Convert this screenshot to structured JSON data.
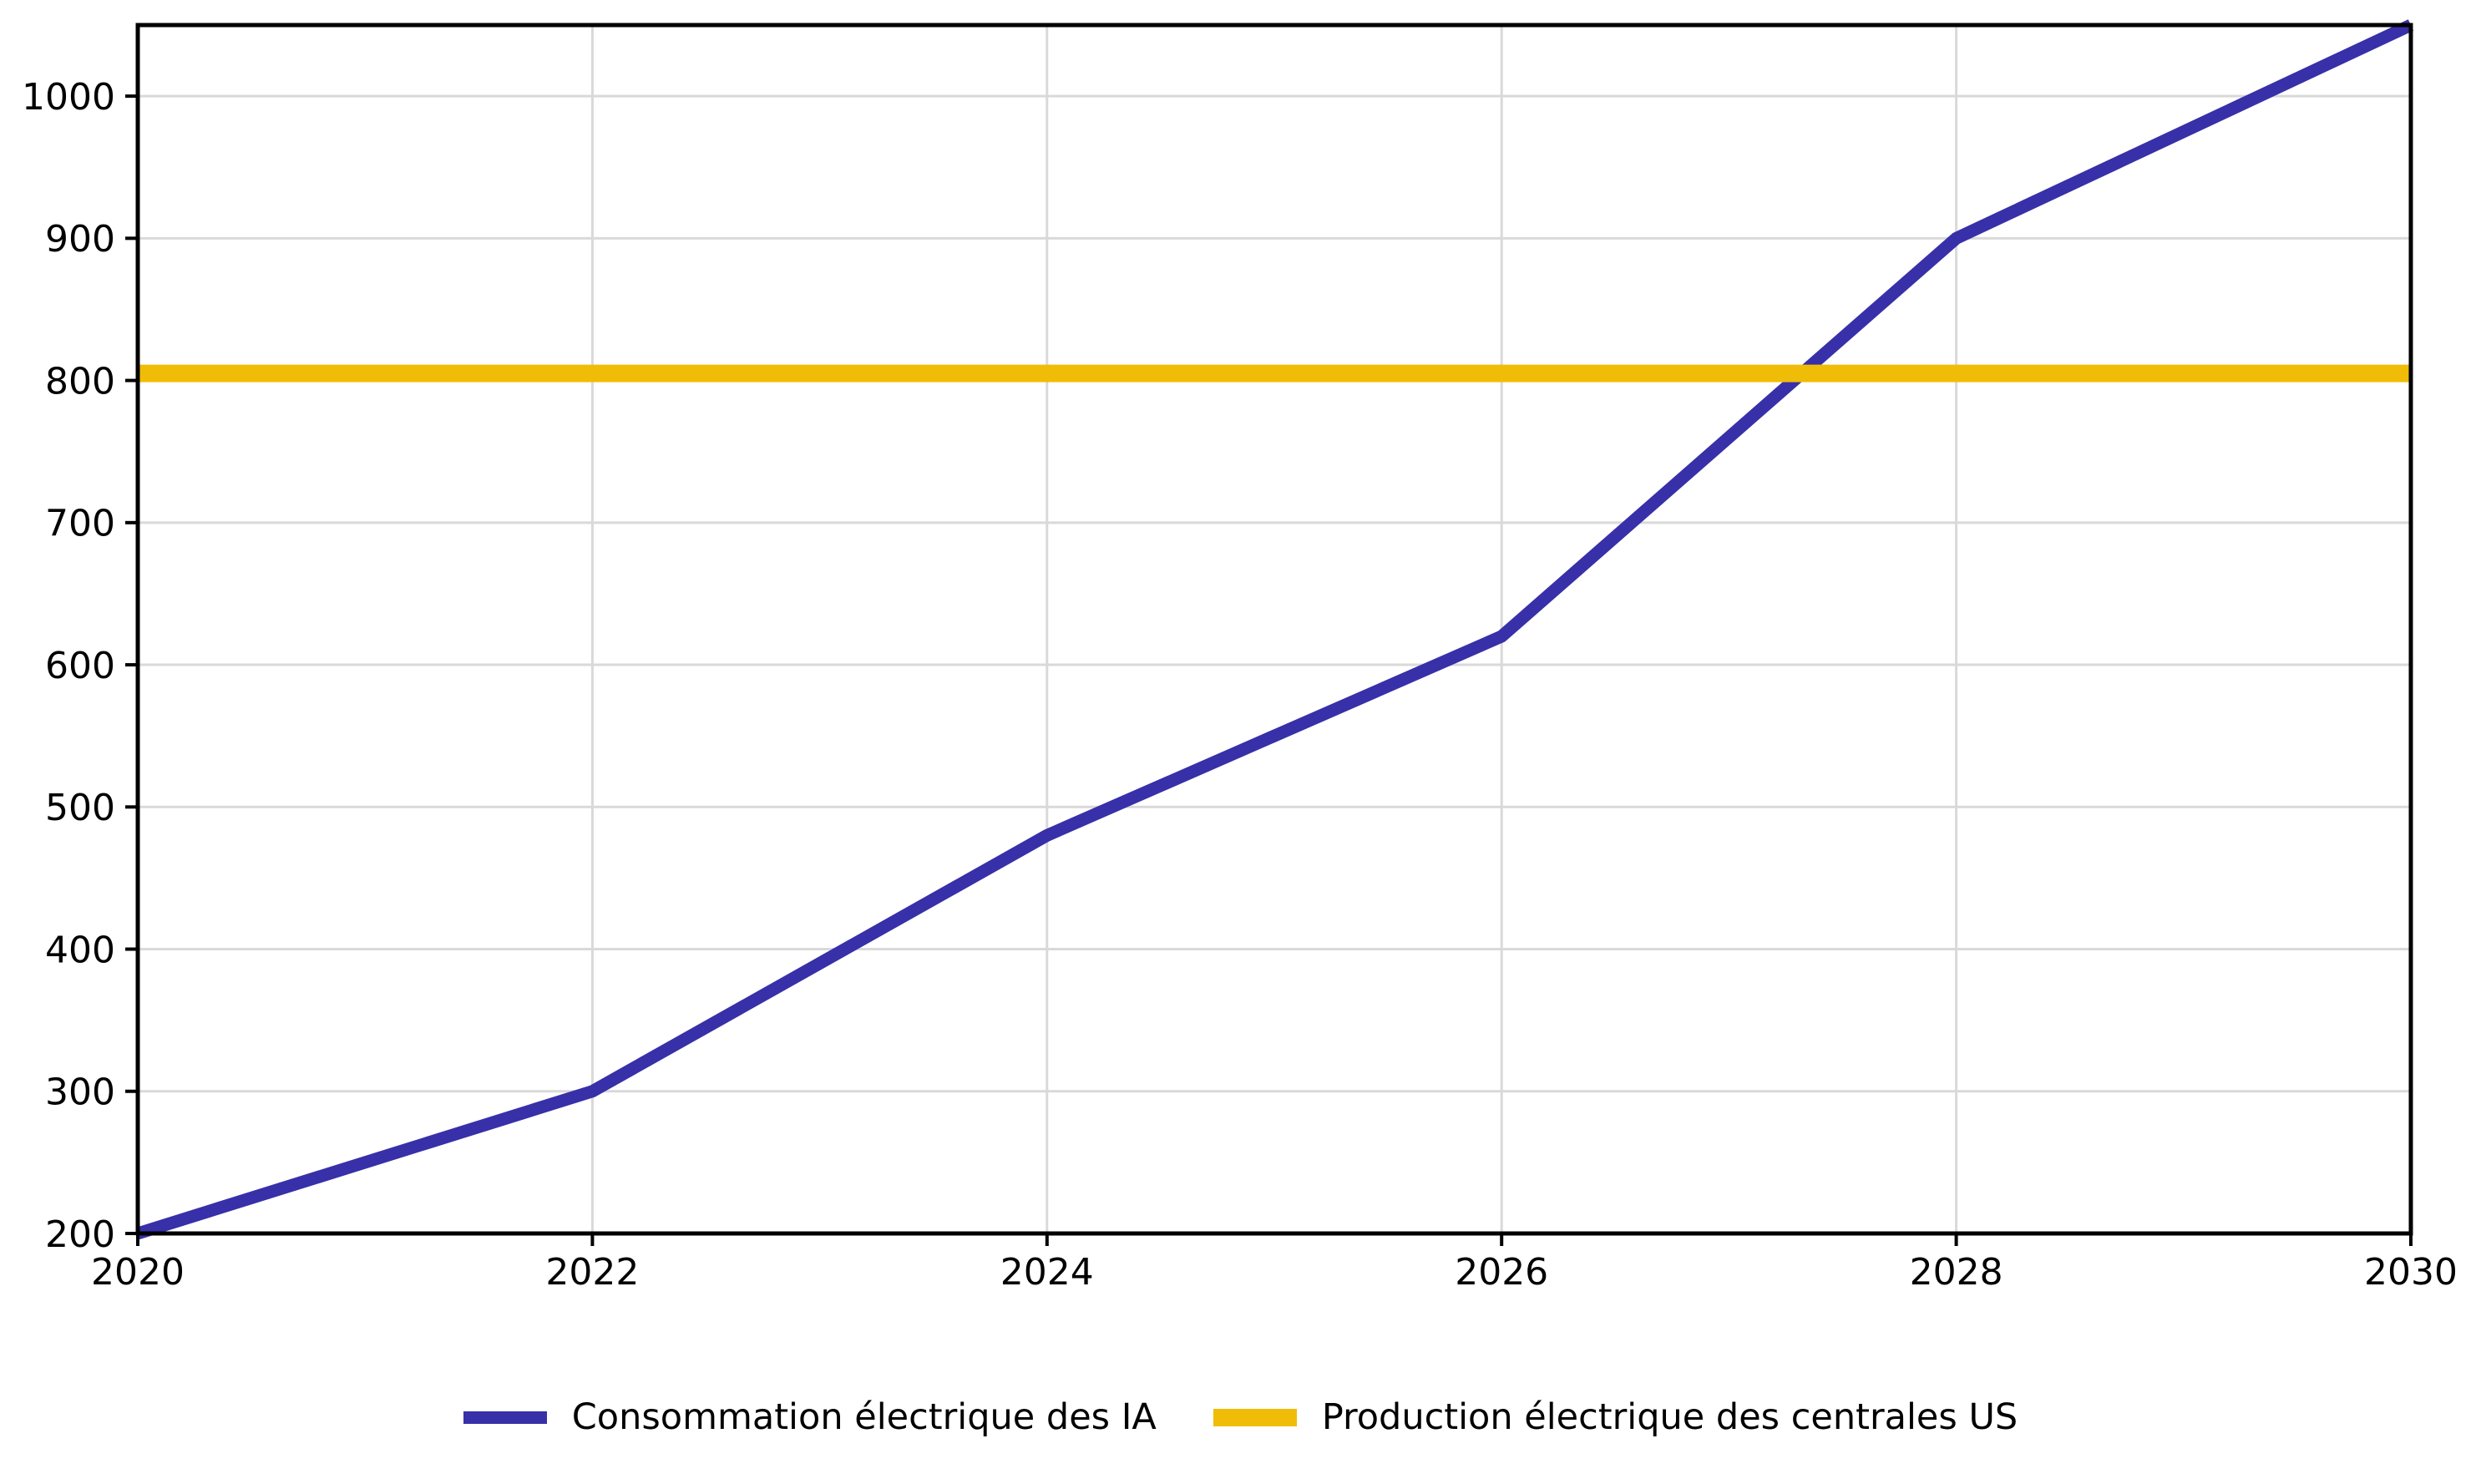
{
  "chart_data": {
    "type": "line",
    "title": "",
    "xlabel": "",
    "ylabel": "",
    "xlim": [
      2020,
      2030
    ],
    "ylim": [
      200,
      1050
    ],
    "grid": true,
    "legend_position": "bottom-center",
    "x_ticks": [
      {
        "value": 2020,
        "label": "2020"
      },
      {
        "value": 2022,
        "label": "2022"
      },
      {
        "value": 2024,
        "label": "2024"
      },
      {
        "value": 2026,
        "label": "2026"
      },
      {
        "value": 2028,
        "label": "2028"
      },
      {
        "value": 2030,
        "label": "2030"
      }
    ],
    "y_ticks": [
      {
        "value": 200,
        "label": "200"
      },
      {
        "value": 300,
        "label": "300"
      },
      {
        "value": 400,
        "label": "400"
      },
      {
        "value": 500,
        "label": "500"
      },
      {
        "value": 600,
        "label": "600"
      },
      {
        "value": 700,
        "label": "700"
      },
      {
        "value": 800,
        "label": "800"
      },
      {
        "value": 900,
        "label": "900"
      },
      {
        "value": 1000,
        "label": "1000"
      }
    ],
    "series": [
      {
        "name": "Consommation électrique des IA",
        "color": "#3730A8",
        "stroke_width": 15,
        "x": [
          2020,
          2022,
          2024,
          2026,
          2028,
          2030
        ],
        "values": [
          200,
          300,
          480,
          620,
          900,
          1050
        ]
      },
      {
        "name": "Production électrique des centrales US",
        "color": "#EFBD08",
        "stroke_width": 21,
        "x": [
          2020,
          2030
        ],
        "values": [
          805,
          805
        ]
      }
    ],
    "colors": {
      "background": "#ffffff",
      "axis": "#000000",
      "grid": "#d9d9d9",
      "tick_text": "#000000"
    }
  }
}
